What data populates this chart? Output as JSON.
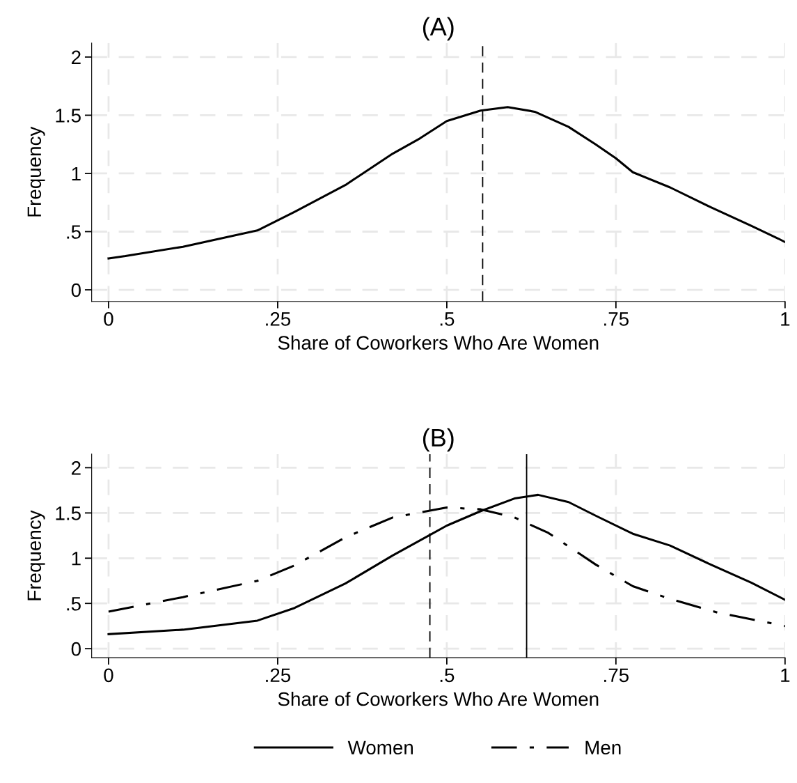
{
  "chart_data": [
    {
      "type": "line",
      "title": "(A)",
      "xlabel": "Share of Coworkers Who Are Women",
      "ylabel": "Frequency",
      "xlim": [
        -0.025,
        1.0
      ],
      "xticks": [
        0,
        {
          "value": 0.25,
          "label": ".25"
        },
        {
          "value": 0.5,
          "label": ".5"
        },
        {
          "value": 0.75,
          "label": ".75"
        },
        1
      ],
      "ylim": [
        -0.1,
        2.12
      ],
      "yticks": [
        0,
        {
          "value": 0.5,
          "label": ".5"
        },
        1,
        1.5,
        2
      ],
      "grid": true,
      "series": [
        {
          "color": "#000000",
          "line_style": "solid",
          "x": [
            0,
            0.025,
            0.11,
            0.22,
            0.275,
            0.35,
            0.42,
            0.46,
            0.5,
            0.55,
            0.59,
            0.63,
            0.68,
            0.72,
            0.75,
            0.775,
            0.83,
            0.89,
            0.95,
            0.99,
            1
          ],
          "values": [
            0.27,
            0.29,
            0.37,
            0.51,
            0.67,
            0.9,
            1.17,
            1.3,
            1.45,
            1.54,
            1.57,
            1.53,
            1.4,
            1.25,
            1.13,
            1.01,
            0.88,
            0.71,
            0.55,
            0.44,
            0.41
          ]
        }
      ],
      "ref_lines": [
        {
          "axis": "x",
          "value": 0.553,
          "color": "#000000",
          "line_style": "dashed"
        }
      ]
    },
    {
      "type": "line",
      "title": "(B)",
      "xlabel": "Share of Coworkers Who Are Women",
      "ylabel": "Frequency",
      "xlim": [
        -0.025,
        1.0
      ],
      "xticks": [
        0,
        {
          "value": 0.25,
          "label": ".25"
        },
        {
          "value": 0.5,
          "label": ".5"
        },
        {
          "value": 0.75,
          "label": ".75"
        },
        1
      ],
      "ylim": [
        -0.1,
        2.15
      ],
      "yticks": [
        0,
        {
          "value": 0.5,
          "label": ".5"
        },
        1,
        1.5,
        2
      ],
      "grid": true,
      "legend": "bottom",
      "series": [
        {
          "name": "Women",
          "color": "#000000",
          "line_style": "solid",
          "x": [
            0,
            0.11,
            0.22,
            0.275,
            0.35,
            0.42,
            0.5,
            0.55,
            0.6,
            0.635,
            0.68,
            0.72,
            0.775,
            0.83,
            0.89,
            0.95,
            1
          ],
          "values": [
            0.16,
            0.21,
            0.31,
            0.45,
            0.72,
            1.03,
            1.36,
            1.52,
            1.66,
            1.7,
            1.62,
            1.47,
            1.27,
            1.14,
            0.93,
            0.73,
            0.54
          ]
        },
        {
          "name": "Men",
          "color": "#000000",
          "line_style": "dashdot",
          "x": [
            0,
            0.11,
            0.22,
            0.275,
            0.35,
            0.42,
            0.5,
            0.55,
            0.6,
            0.65,
            0.72,
            0.775,
            0.83,
            0.9,
            1
          ],
          "values": [
            0.41,
            0.57,
            0.75,
            0.92,
            1.23,
            1.45,
            1.56,
            1.54,
            1.45,
            1.28,
            0.93,
            0.69,
            0.55,
            0.4,
            0.25
          ]
        }
      ],
      "ref_lines": [
        {
          "axis": "x",
          "value": 0.475,
          "color": "#000000",
          "line_style": "dashed"
        },
        {
          "axis": "x",
          "value": 0.618,
          "color": "#000000",
          "line_style": "solid"
        }
      ]
    }
  ]
}
